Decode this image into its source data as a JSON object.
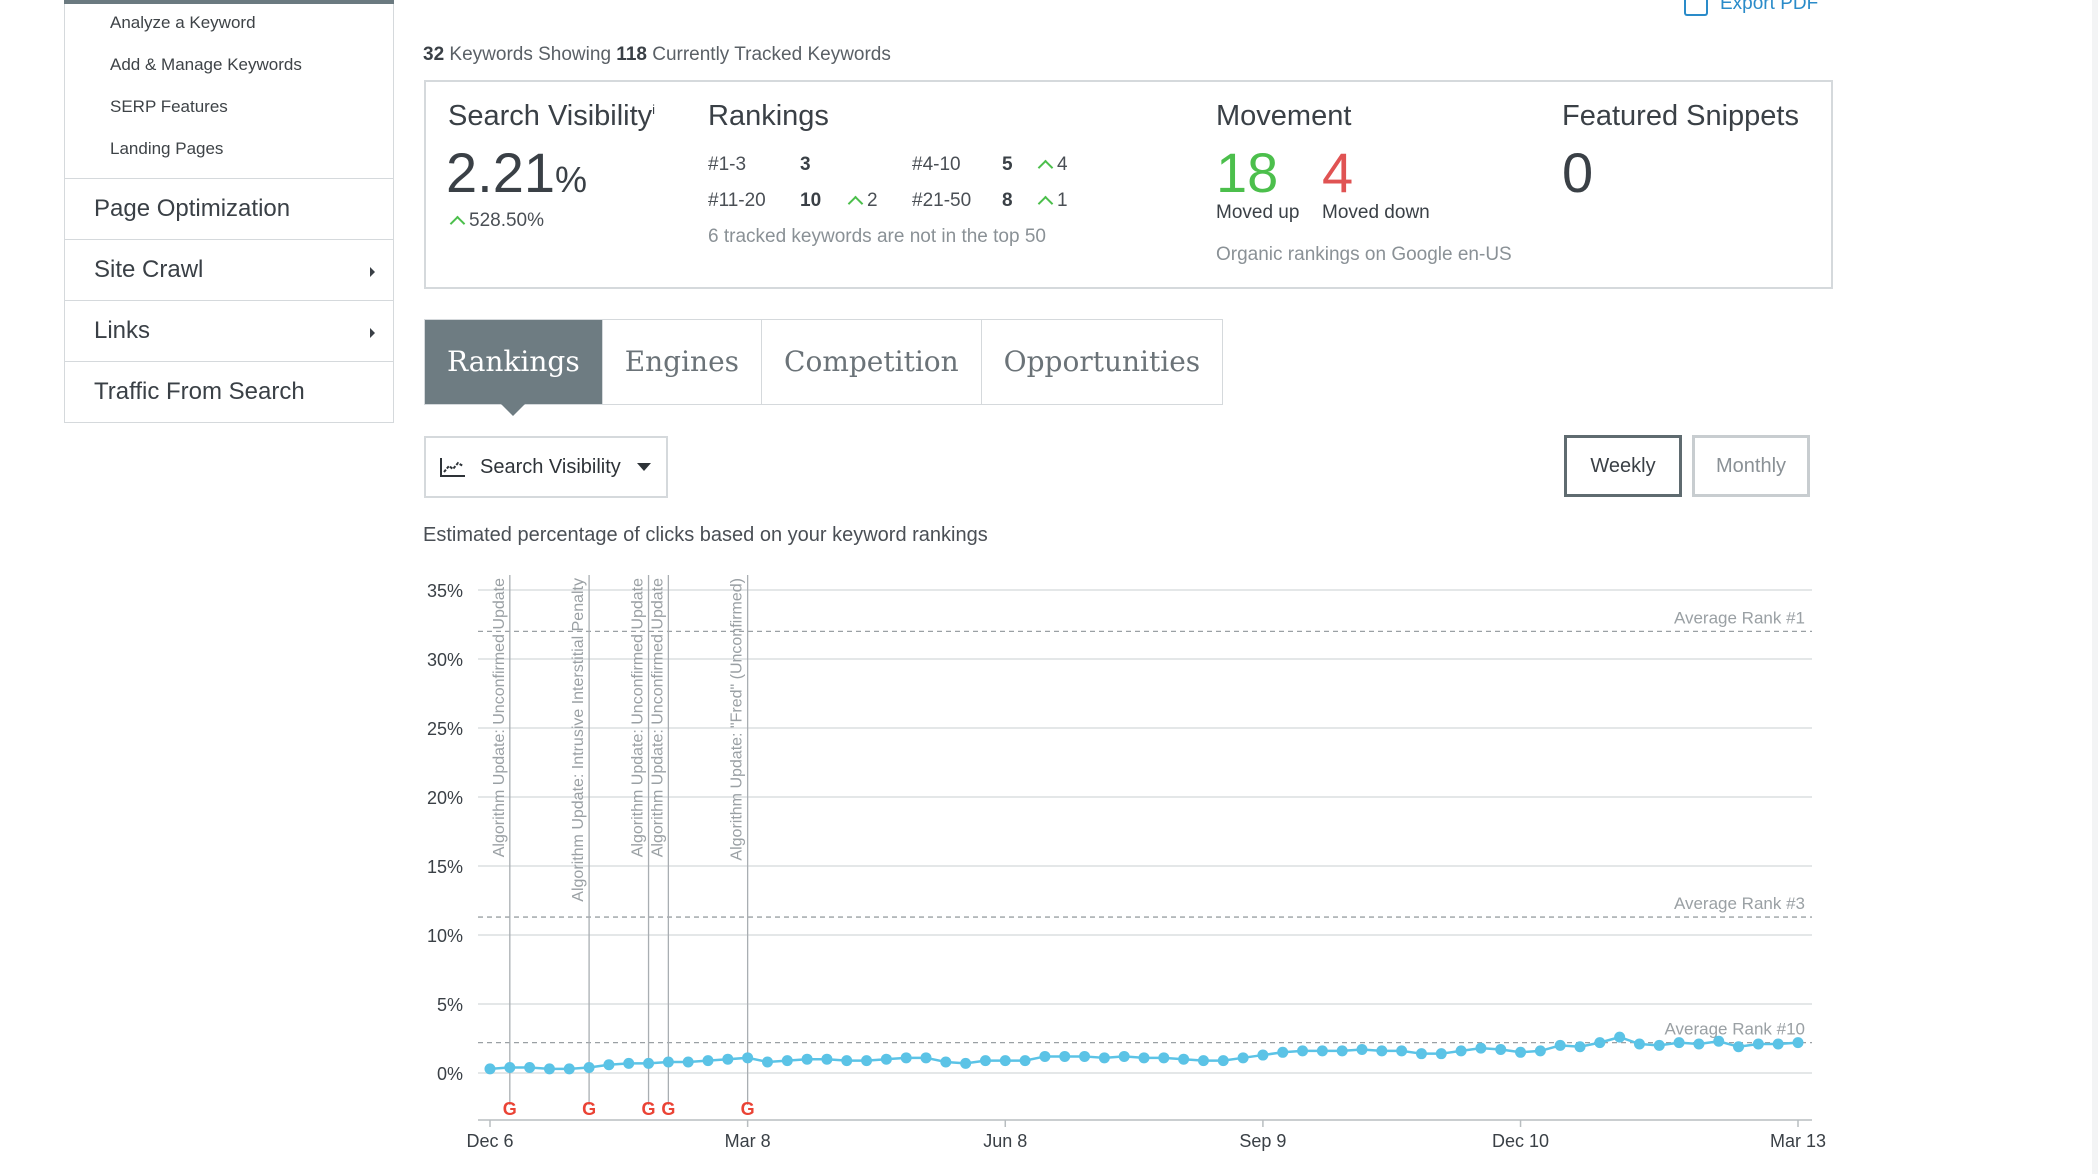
{
  "sidebar": {
    "sub_items": [
      "Analyze a Keyword",
      "Add & Manage Keywords",
      "SERP Features",
      "Landing Pages"
    ],
    "main_items": [
      {
        "label": "Page Optimization",
        "has_arrow": false
      },
      {
        "label": "Site Crawl",
        "has_arrow": true
      },
      {
        "label": "Links",
        "has_arrow": true
      },
      {
        "label": "Traffic From Search",
        "has_arrow": false
      }
    ]
  },
  "header": {
    "export_label": "Export PDF",
    "showing_count": "32",
    "showing_text": "Keywords Showing",
    "tracked_count": "118",
    "tracked_text": "Currently Tracked Keywords"
  },
  "stats": {
    "search_visibility": {
      "title": "Search Visibility",
      "info": "i",
      "value": "2.21",
      "unit": "%",
      "change": "528.50%"
    },
    "rankings": {
      "title": "Rankings",
      "rows": [
        {
          "range": "#1-3",
          "count": "3",
          "delta": ""
        },
        {
          "range": "#4-10",
          "count": "5",
          "delta": "4"
        },
        {
          "range": "#11-20",
          "count": "10",
          "delta": "2"
        },
        {
          "range": "#21-50",
          "count": "8",
          "delta": "1"
        }
      ],
      "note": "6 tracked keywords are not in the top 50"
    },
    "movement": {
      "title": "Movement",
      "up": "18",
      "up_label": "Moved up",
      "down": "4",
      "down_label": "Moved down",
      "note": "Organic rankings on Google en-US"
    },
    "featured_snippets": {
      "title": "Featured Snippets",
      "value": "0"
    }
  },
  "tabs": [
    "Rankings",
    "Engines",
    "Competition",
    "Opportunities"
  ],
  "active_tab": "Rankings",
  "controls": {
    "metric_label": "Search Visibility",
    "weekly_label": "Weekly",
    "monthly_label": "Monthly",
    "selected_period": "Weekly"
  },
  "chart_caption": "Estimated percentage of clicks based on your keyword rankings",
  "colors": {
    "line": "#5bc3e6",
    "up": "#4cbf4c",
    "down": "#e05353",
    "tab_active": "#6e7c82",
    "link": "#2a8bc9"
  },
  "chart_data": {
    "type": "line",
    "title": "",
    "xlabel": "",
    "ylabel": "",
    "y_unit": "%",
    "ylim": [
      0,
      35
    ],
    "y_ticks": [
      "0%",
      "5%",
      "10%",
      "15%",
      "20%",
      "25%",
      "30%",
      "35%"
    ],
    "x_ticks": [
      "Dec 6",
      "Mar 8",
      "Jun 8",
      "Sep 9",
      "Dec 10",
      "Mar 13"
    ],
    "x_tick_weeks": [
      0,
      13,
      26,
      39,
      52,
      66
    ],
    "grid": true,
    "reference_lines": [
      {
        "label": "Average Rank #1",
        "value": 32
      },
      {
        "label": "Average Rank #3",
        "value": 11.3
      },
      {
        "label": "Average Rank #10",
        "value": 2.2
      }
    ],
    "annotations": [
      {
        "week": 1,
        "label": "Algorithm Update: Unconfirmed Update"
      },
      {
        "week": 5,
        "label": "Algorithm Update: Intrusive Interstitial Penalty"
      },
      {
        "week": 8,
        "label": "Algorithm Update: Unconfirmed Update"
      },
      {
        "week": 9,
        "label": "Algorithm Update: Unconfirmed Update"
      },
      {
        "week": 13,
        "label": "Algorithm Update: \"Fred\" (Unconfirmed)"
      }
    ],
    "marker_glyph": "G",
    "series": [
      {
        "x_week": [
          0,
          1,
          2,
          3,
          4,
          5,
          6,
          7,
          8,
          9,
          10,
          11,
          12,
          13,
          14,
          15,
          16,
          17,
          18,
          19,
          20,
          21,
          22,
          23,
          24,
          25,
          26,
          27,
          28,
          29,
          30,
          31,
          32,
          33,
          34,
          35,
          36,
          37,
          38,
          39,
          40,
          41,
          42,
          43,
          44,
          45,
          46,
          47,
          48,
          49,
          50,
          51,
          52,
          53,
          54,
          55,
          56,
          57,
          58,
          59,
          60,
          61,
          62,
          63,
          64,
          65,
          66
        ],
        "values": [
          0.3,
          0.4,
          0.4,
          0.3,
          0.3,
          0.4,
          0.6,
          0.7,
          0.7,
          0.8,
          0.8,
          0.9,
          1.0,
          1.1,
          0.8,
          0.9,
          1.0,
          1.0,
          0.9,
          0.9,
          1.0,
          1.1,
          1.1,
          0.8,
          0.7,
          0.9,
          0.9,
          0.9,
          1.2,
          1.2,
          1.2,
          1.1,
          1.2,
          1.1,
          1.1,
          1.0,
          0.9,
          0.9,
          1.1,
          1.3,
          1.5,
          1.6,
          1.6,
          1.6,
          1.7,
          1.6,
          1.6,
          1.4,
          1.4,
          1.6,
          1.8,
          1.7,
          1.5,
          1.6,
          2.0,
          1.9,
          2.2,
          2.6,
          2.1,
          2.0,
          2.2,
          2.1,
          2.3,
          1.9,
          2.1,
          2.1,
          2.2
        ]
      }
    ]
  }
}
